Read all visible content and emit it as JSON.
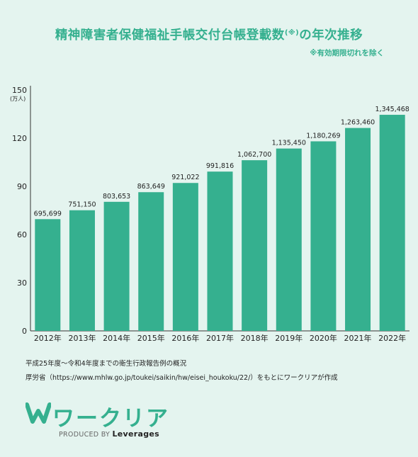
{
  "title": {
    "main": "精神障害者保健福祉手帳交付台帳登載数",
    "mark": "(※)",
    "suffix": "の年次推移"
  },
  "note": "※有効期限切れを除く",
  "chart_data": {
    "type": "bar",
    "yunit": "(万人)",
    "ylim": [
      0,
      150
    ],
    "yticks": [
      0,
      30,
      60,
      90,
      120,
      150
    ],
    "categories": [
      "2012年",
      "2013年",
      "2014年",
      "2015年",
      "2016年",
      "2017年",
      "2018年",
      "2019年",
      "2020年",
      "2021年",
      "2022年"
    ],
    "values": [
      695699,
      751150,
      803653,
      863649,
      921022,
      991816,
      1062700,
      1135450,
      1180269,
      1263460,
      1345468
    ],
    "value_labels": [
      "695,699",
      "751,150",
      "803,653",
      "863,649",
      "921,022",
      "991,816",
      "1,062,700",
      "1,135,450",
      "1,180,269",
      "1,263,460",
      "1,345,468"
    ],
    "bar_color": "#35b08f",
    "grid": false
  },
  "source": {
    "line1": "平成25年度～令和4年度までの衛生行政報告例の概況",
    "line2": "厚労省（https://www.mhlw.go.jp/toukei/saikin/hw/eisei_houkoku/22/）をもとにワークリアが作成"
  },
  "logo": {
    "name": "ワークリア",
    "produced_by": "PRODUCED BY",
    "company": "Leverages"
  }
}
